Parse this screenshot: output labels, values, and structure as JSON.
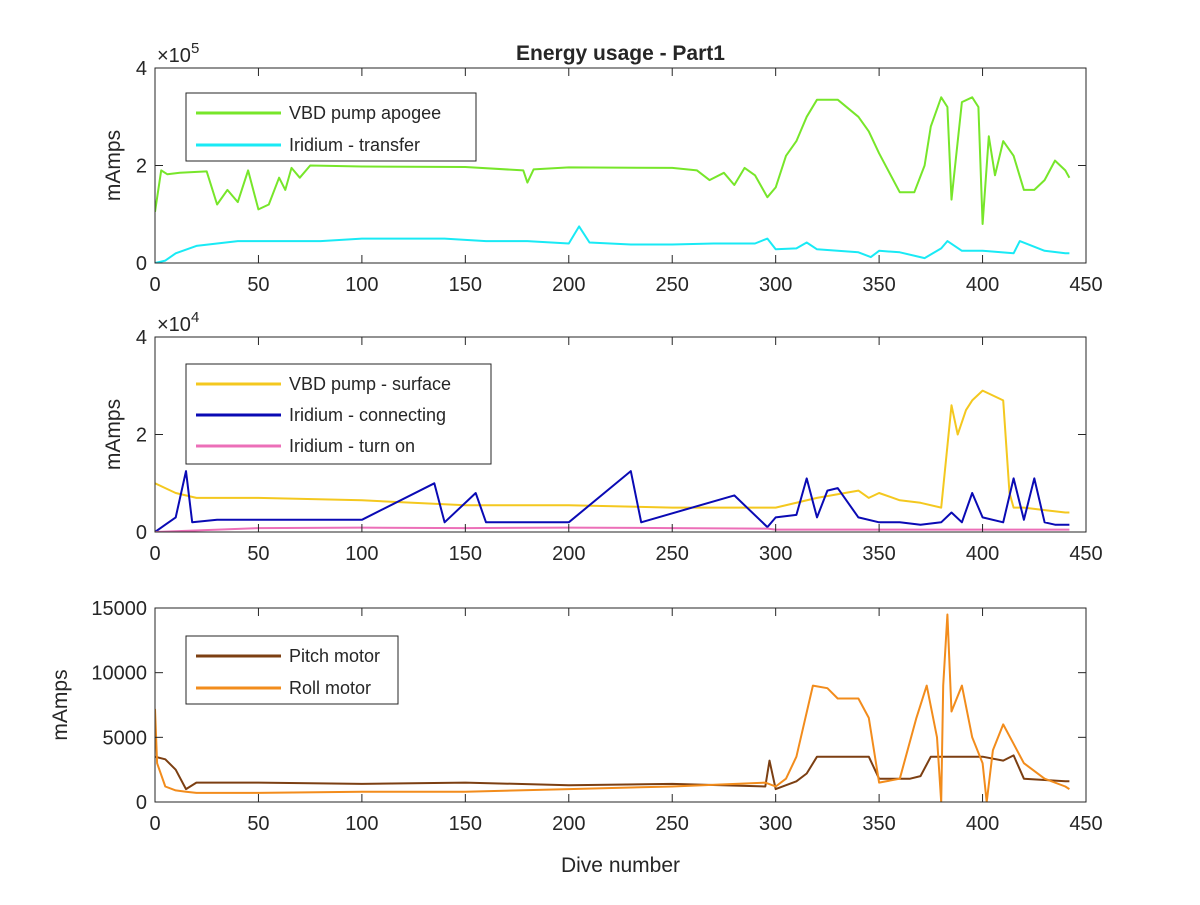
{
  "chart_data": [
    {
      "type": "line",
      "title": "Energy usage - Part1",
      "xlabel": "",
      "ylabel": "mAmps",
      "xlim": [
        0,
        450
      ],
      "ylim": [
        0,
        400000
      ],
      "y_exponent_label": "×10",
      "y_exponent_value": "5",
      "x_ticks": [
        "0",
        "50",
        "100",
        "150",
        "200",
        "250",
        "300",
        "350",
        "400",
        "450"
      ],
      "y_ticks": [
        "0",
        "2",
        "4"
      ],
      "legend_position": "top-left",
      "grid": false,
      "series": [
        {
          "name": "VBD pump apogee",
          "color": "#77e62a",
          "x": [
            0,
            3,
            6,
            12,
            25,
            30,
            35,
            40,
            45,
            50,
            55,
            60,
            63,
            66,
            70,
            75,
            100,
            150,
            178,
            180,
            183,
            200,
            250,
            262,
            268,
            275,
            280,
            285,
            290,
            296,
            300,
            305,
            310,
            315,
            320,
            330,
            340,
            345,
            350,
            360,
            367,
            372,
            375,
            380,
            383,
            385,
            390,
            395,
            398,
            400,
            403,
            406,
            410,
            415,
            420,
            425,
            430,
            435,
            440,
            442
          ],
          "y": [
            105000,
            190000,
            182000,
            185000,
            188000,
            120000,
            150000,
            125000,
            190000,
            110000,
            120000,
            175000,
            150000,
            195000,
            175000,
            200000,
            198000,
            197000,
            190000,
            165000,
            192000,
            196000,
            195000,
            190000,
            170000,
            185000,
            160000,
            195000,
            180000,
            135000,
            155000,
            220000,
            250000,
            300000,
            335000,
            335000,
            300000,
            270000,
            225000,
            145000,
            145000,
            200000,
            280000,
            340000,
            320000,
            130000,
            330000,
            340000,
            320000,
            80000,
            260000,
            180000,
            250000,
            220000,
            150000,
            150000,
            170000,
            210000,
            190000,
            175000
          ]
        },
        {
          "name": "Iridium - transfer",
          "color": "#19eaf5",
          "x": [
            0,
            5,
            10,
            20,
            40,
            60,
            80,
            100,
            120,
            140,
            160,
            180,
            200,
            205,
            210,
            230,
            250,
            270,
            290,
            296,
            300,
            310,
            315,
            320,
            340,
            346,
            350,
            360,
            372,
            380,
            383,
            390,
            400,
            415,
            418,
            430,
            440,
            442
          ],
          "y": [
            0,
            5000,
            20000,
            35000,
            45000,
            45000,
            45000,
            50000,
            50000,
            50000,
            45000,
            45000,
            40000,
            75000,
            42000,
            38000,
            38000,
            40000,
            40000,
            50000,
            28000,
            30000,
            42000,
            28000,
            22000,
            12000,
            25000,
            22000,
            10000,
            30000,
            45000,
            25000,
            25000,
            20000,
            45000,
            25000,
            20000,
            20000
          ]
        }
      ]
    },
    {
      "type": "line",
      "title": "",
      "xlabel": "",
      "ylabel": "mAmps",
      "xlim": [
        0,
        450
      ],
      "ylim": [
        0,
        40000
      ],
      "y_exponent_label": "×10",
      "y_exponent_value": "4",
      "x_ticks": [
        "0",
        "50",
        "100",
        "150",
        "200",
        "250",
        "300",
        "350",
        "400",
        "450"
      ],
      "y_ticks": [
        "0",
        "2",
        "4"
      ],
      "legend_position": "top-left",
      "grid": false,
      "series": [
        {
          "name": "VBD pump - surface",
          "color": "#f4c81f",
          "x": [
            0,
            5,
            10,
            20,
            50,
            100,
            150,
            200,
            250,
            295,
            300,
            320,
            340,
            345,
            350,
            360,
            370,
            380,
            385,
            388,
            392,
            395,
            400,
            405,
            410,
            413,
            415,
            420,
            430,
            440,
            442
          ],
          "y": [
            10000,
            9000,
            8000,
            7000,
            7000,
            6500,
            5500,
            5500,
            5000,
            5000,
            5000,
            7000,
            8500,
            7000,
            8000,
            6500,
            6000,
            5000,
            26000,
            20000,
            25000,
            27000,
            29000,
            28000,
            27000,
            8000,
            5000,
            5000,
            4500,
            4000,
            4000
          ]
        },
        {
          "name": "Iridium - connecting",
          "color": "#0a0ab4",
          "x": [
            0,
            5,
            10,
            15,
            18,
            30,
            60,
            100,
            135,
            140,
            155,
            160,
            200,
            230,
            235,
            280,
            296,
            300,
            310,
            315,
            320,
            325,
            330,
            335,
            340,
            350,
            360,
            370,
            380,
            385,
            390,
            395,
            400,
            410,
            415,
            420,
            425,
            430,
            435,
            442
          ],
          "y": [
            0,
            1500,
            3000,
            12500,
            2000,
            2500,
            2500,
            2500,
            10000,
            2000,
            8000,
            2000,
            2000,
            12500,
            2000,
            7500,
            1000,
            3000,
            3500,
            11000,
            3000,
            8500,
            9000,
            6000,
            3000,
            2000,
            2000,
            1500,
            2000,
            4000,
            2000,
            8000,
            3000,
            2000,
            11000,
            2500,
            11000,
            2000,
            1500,
            1500
          ]
        },
        {
          "name": "Iridium - turn on",
          "color": "#ec6fb8",
          "x": [
            0,
            50,
            100,
            150,
            200,
            250,
            296,
            300,
            350,
            400,
            442
          ],
          "y": [
            0,
            800,
            900,
            800,
            900,
            800,
            700,
            500,
            500,
            500,
            500
          ]
        }
      ]
    },
    {
      "type": "line",
      "title": "",
      "xlabel": "Dive number",
      "ylabel": "mAmps",
      "xlim": [
        0,
        450
      ],
      "ylim": [
        0,
        15000
      ],
      "x_ticks": [
        "0",
        "50",
        "100",
        "150",
        "200",
        "250",
        "300",
        "350",
        "400",
        "450"
      ],
      "y_ticks": [
        "0",
        "5000",
        "10000",
        "15000"
      ],
      "legend_position": "top-left",
      "grid": false,
      "series": [
        {
          "name": "Pitch motor",
          "color": "#7c3f12",
          "x": [
            0,
            5,
            10,
            15,
            20,
            50,
            100,
            150,
            200,
            250,
            295,
            297,
            300,
            310,
            315,
            320,
            345,
            350,
            365,
            370,
            375,
            380,
            400,
            410,
            415,
            420,
            440,
            442
          ],
          "y": [
            3500,
            3300,
            2500,
            1000,
            1500,
            1500,
            1400,
            1500,
            1300,
            1400,
            1200,
            3200,
            1000,
            1600,
            2200,
            3500,
            3500,
            1800,
            1800,
            2000,
            3500,
            3500,
            3500,
            3200,
            3600,
            1800,
            1600,
            1600
          ]
        },
        {
          "name": "Roll motor",
          "color": "#f28c1c",
          "x": [
            0,
            1,
            5,
            10,
            15,
            20,
            50,
            100,
            150,
            200,
            250,
            295,
            300,
            305,
            310,
            318,
            325,
            330,
            340,
            345,
            350,
            360,
            368,
            373,
            378,
            380,
            381,
            383,
            385,
            390,
            395,
            400,
            402,
            405,
            410,
            415,
            420,
            430,
            440,
            442
          ],
          "y": [
            7200,
            3000,
            1200,
            900,
            800,
            700,
            700,
            800,
            800,
            1000,
            1200,
            1500,
            1200,
            1800,
            3500,
            9000,
            8800,
            8000,
            8000,
            6500,
            1500,
            1800,
            6500,
            9000,
            5000,
            0,
            9000,
            14500,
            7000,
            9000,
            5000,
            3000,
            0,
            4000,
            6000,
            4500,
            3000,
            1800,
            1200,
            1000
          ]
        }
      ]
    }
  ]
}
